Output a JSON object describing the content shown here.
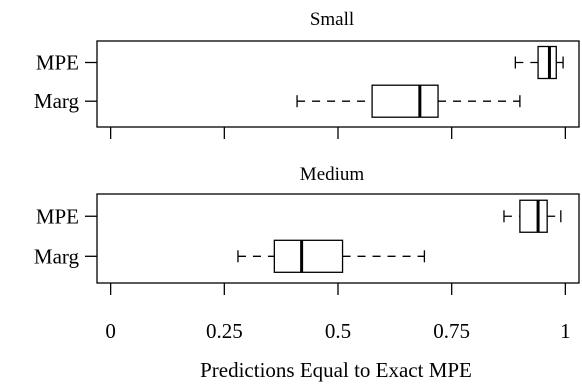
{
  "chart_data": {
    "type": "boxplot",
    "orientation": "horizontal",
    "xlabel": "Predictions Equal to Exact MPE",
    "xlim": [
      -0.03,
      1.03
    ],
    "xticks": [
      0,
      0.25,
      0.5,
      0.75,
      1
    ],
    "xtick_labels": [
      "0",
      "0.25",
      "0.5",
      "0.75",
      "1"
    ],
    "grid": false,
    "panels": [
      {
        "title": "Small",
        "categories": [
          "MPE",
          "Marg"
        ],
        "boxes": [
          {
            "label": "MPE",
            "whisker_low": 0.89,
            "q1": 0.94,
            "median": 0.965,
            "q3": 0.98,
            "whisker_high": 0.995
          },
          {
            "label": "Marg",
            "whisker_low": 0.41,
            "q1": 0.575,
            "median": 0.68,
            "q3": 0.72,
            "whisker_high": 0.9
          }
        ]
      },
      {
        "title": "Medium",
        "categories": [
          "MPE",
          "Marg"
        ],
        "boxes": [
          {
            "label": "MPE",
            "whisker_low": 0.865,
            "q1": 0.9,
            "median": 0.94,
            "q3": 0.96,
            "whisker_high": 0.99
          },
          {
            "label": "Marg",
            "whisker_low": 0.28,
            "q1": 0.36,
            "median": 0.42,
            "q3": 0.51,
            "whisker_high": 0.69
          }
        ]
      }
    ]
  }
}
